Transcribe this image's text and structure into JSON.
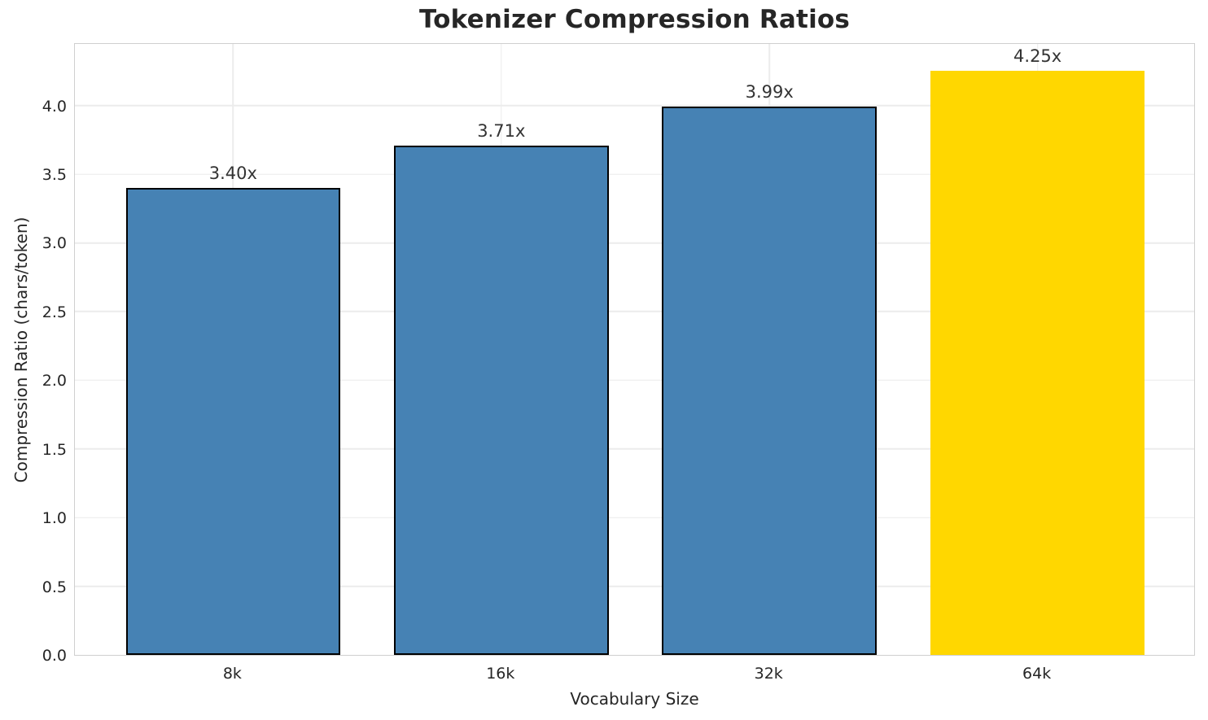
{
  "chart_data": {
    "type": "bar",
    "title": "Tokenizer Compression Ratios",
    "xlabel": "Vocabulary Size",
    "ylabel": "Compression Ratio (chars/token)",
    "categories": [
      "8k",
      "16k",
      "32k",
      "64k"
    ],
    "values": [
      3.4,
      3.71,
      3.99,
      4.25
    ],
    "bar_labels": [
      "3.40x",
      "3.71x",
      "3.99x",
      "4.25x"
    ],
    "bar_colors": [
      "#4682B4",
      "#4682B4",
      "#4682B4",
      "#FFD700"
    ],
    "bar_edge_colors": [
      "#000000",
      "#000000",
      "#000000",
      "none"
    ],
    "bar_width": 0.8,
    "ylim": [
      0,
      4.46
    ],
    "yticks": [
      0.0,
      0.5,
      1.0,
      1.5,
      2.0,
      2.5,
      3.0,
      3.5,
      4.0
    ],
    "ytick_labels": [
      "0.0",
      "0.5",
      "1.0",
      "1.5",
      "2.0",
      "2.5",
      "3.0",
      "3.5",
      "4.0"
    ],
    "grid": "both",
    "legend": "none"
  },
  "colors": {
    "background": "#ffffff",
    "grid": "#ececec",
    "spine": "#cfcfcf",
    "text": "#262626",
    "value_label": "#333333"
  }
}
